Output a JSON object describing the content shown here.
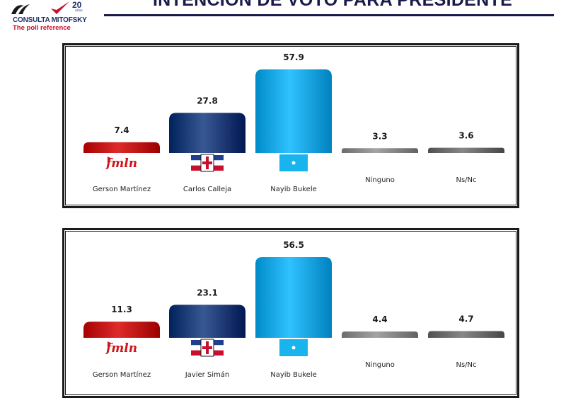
{
  "logo": {
    "brand": "CONSULTA MITOFSKY",
    "tagline": "The poll reference",
    "years": "20",
    "years_sub": "años"
  },
  "title": "INTENCIÓN DE VOTO PARA PRESIDENTE",
  "colors": {
    "fmln": "#c41212",
    "arena": "#1f3f7a",
    "nuevas_ideas": "#16a9e6",
    "ninguno": "#8a8a8a",
    "nsnc": "#6e6e6e",
    "title": "#1b1b4b"
  },
  "chart_data": [
    {
      "type": "bar",
      "title": "",
      "categories": [
        "Gerson Martínez",
        "Carlos Calleja",
        "Nayib Bukele",
        "Ninguno",
        "Ns/Nc"
      ],
      "values": [
        7.4,
        27.8,
        57.9,
        3.3,
        3.6
      ],
      "value_labels": [
        "7.4",
        "27.8",
        "57.9",
        "3.3",
        "3.6"
      ],
      "bar_colors": [
        "#c41212",
        "#1f3f7a",
        "#16a9e6",
        "#8a8a8a",
        "#6e6e6e"
      ],
      "party_icons": [
        "fmln-logo-icon",
        "arena-flag-icon",
        "nuevas-ideas-logo-icon",
        "",
        ""
      ],
      "fmln_logo_text": "fmln",
      "ylim": [
        0,
        60
      ],
      "grid": false,
      "legend": "none"
    },
    {
      "type": "bar",
      "title": "",
      "categories": [
        "Gerson Martínez",
        "Javier Simán",
        "Nayib Bukele",
        "Ninguno",
        "Ns/Nc"
      ],
      "values": [
        11.3,
        23.1,
        56.5,
        4.4,
        4.7
      ],
      "value_labels": [
        "11.3",
        "23.1",
        "56.5",
        "4.4",
        "4.7"
      ],
      "bar_colors": [
        "#c41212",
        "#1f3f7a",
        "#16a9e6",
        "#8a8a8a",
        "#6e6e6e"
      ],
      "party_icons": [
        "fmln-logo-icon",
        "arena-flag-icon",
        "nuevas-ideas-logo-icon",
        "",
        ""
      ],
      "fmln_logo_text": "fmln",
      "ylim": [
        0,
        60
      ],
      "grid": false,
      "legend": "none"
    }
  ]
}
